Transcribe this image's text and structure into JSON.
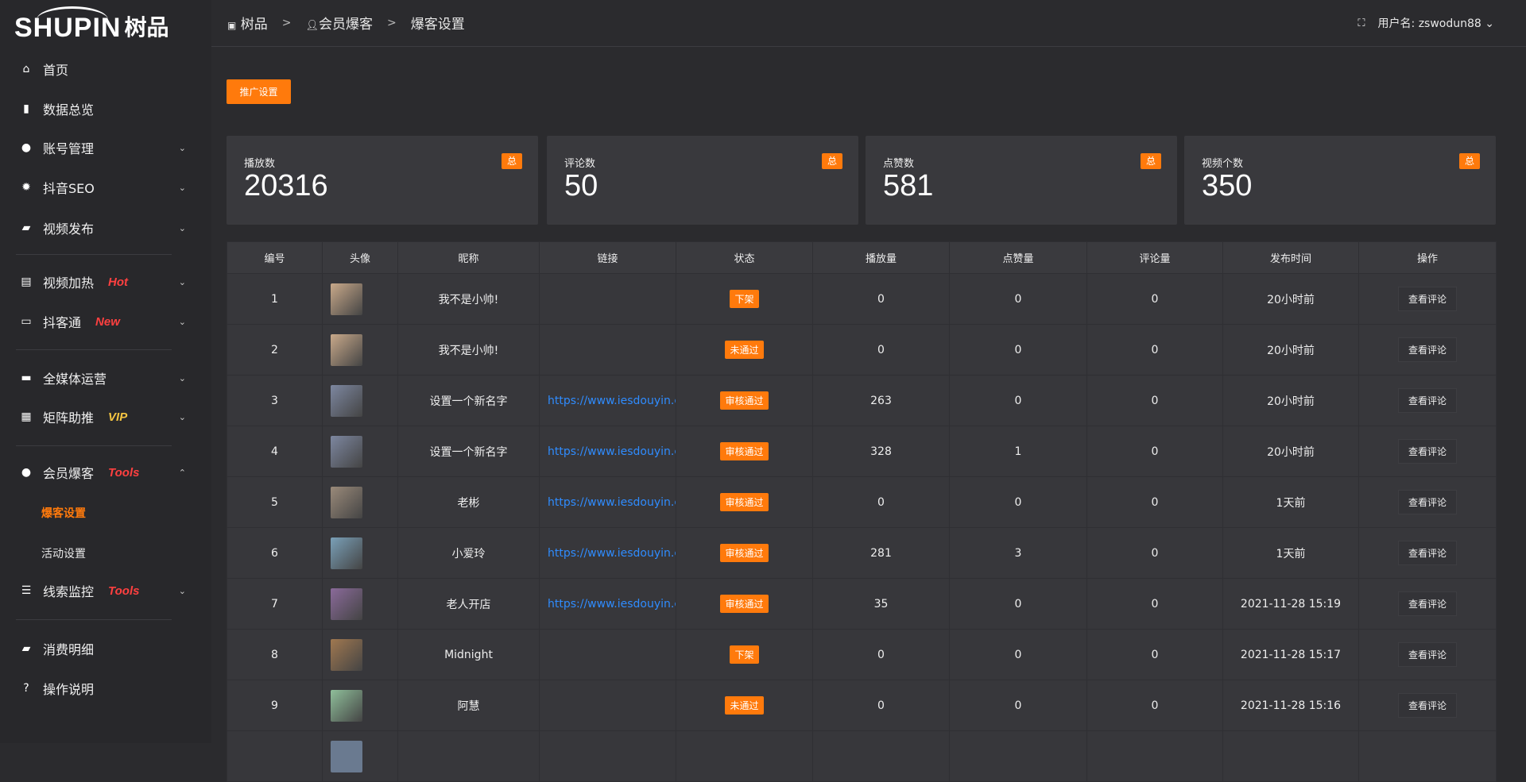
{
  "brand": {
    "logo_text": "SHUPIN 树品",
    "en": "SHUPIN",
    "cn": "树品"
  },
  "breadcrumb": [
    {
      "label": "树品"
    },
    {
      "label": "会员爆客"
    },
    {
      "label": "爆客设置"
    }
  ],
  "header": {
    "user_label": "用户名: zswodun88"
  },
  "sidebar": {
    "items": [
      {
        "label": "首页",
        "icon": "home-icon"
      },
      {
        "label": "数据总览",
        "icon": "bar-chart-icon"
      },
      {
        "label": "账号管理",
        "icon": "user-icon"
      },
      {
        "label": "抖音SEO",
        "icon": "gear-icon"
      },
      {
        "label": "视频发布",
        "icon": "camera-icon"
      },
      {
        "label": "视频加热",
        "icon": "sign-icon",
        "tag": "Hot"
      },
      {
        "label": "抖客通",
        "icon": "chat-icon",
        "tag": "New"
      },
      {
        "label": "全媒体运营",
        "icon": "monitor-icon"
      },
      {
        "label": "矩阵助推",
        "icon": "grid-icon",
        "tag": "VIP"
      },
      {
        "label": "会员爆客",
        "icon": "user-icon",
        "tag": "Tools"
      },
      {
        "label": "线索监控",
        "icon": "sliders-icon",
        "tag": "Tools"
      },
      {
        "label": "消费明细",
        "icon": "wallet-icon"
      },
      {
        "label": "操作说明",
        "icon": "help-icon"
      }
    ],
    "subitems": [
      {
        "label": "爆客设置",
        "active": true
      },
      {
        "label": "活动设置"
      }
    ]
  },
  "colors": {
    "accent": "#ff7a0c",
    "hot": "#ff4040",
    "vip": "#f5c542",
    "link": "#2f8cff"
  },
  "toolbar": {
    "promo_label": "推广设置"
  },
  "stats": [
    {
      "label": "播放数",
      "value": "20316",
      "badge": "总"
    },
    {
      "label": "评论数",
      "value": "50",
      "badge": "总"
    },
    {
      "label": "点赞数",
      "value": "581",
      "badge": "总"
    },
    {
      "label": "视频个数",
      "value": "350",
      "badge": "总"
    }
  ],
  "table": {
    "columns": [
      "编号",
      "头像",
      "昵称",
      "链接",
      "状态",
      "播放量",
      "点赞量",
      "评论量",
      "发布时间",
      "操作"
    ],
    "action_label": "查看评论",
    "rows": [
      {
        "id": "1",
        "nick": "我不是小帅!",
        "link": "",
        "status": "下架",
        "plays": "0",
        "likes": "0",
        "comments": "0",
        "time": "20小时前",
        "avatar": "#c9a98a"
      },
      {
        "id": "2",
        "nick": "我不是小帅!",
        "link": "",
        "status": "未通过",
        "plays": "0",
        "likes": "0",
        "comments": "0",
        "time": "20小时前",
        "avatar": "#c9a98a"
      },
      {
        "id": "3",
        "nick": "设置一个新名字",
        "link": "https://www.iesdouyin.c",
        "status": "审核通过",
        "plays": "263",
        "likes": "0",
        "comments": "0",
        "time": "20小时前",
        "avatar": "#7d87a0"
      },
      {
        "id": "4",
        "nick": "设置一个新名字",
        "link": "https://www.iesdouyin.c",
        "status": "审核通过",
        "plays": "328",
        "likes": "1",
        "comments": "0",
        "time": "20小时前",
        "avatar": "#7d87a0"
      },
      {
        "id": "5",
        "nick": "老彬",
        "link": "https://www.iesdouyin.c",
        "status": "审核通过",
        "plays": "0",
        "likes": "0",
        "comments": "0",
        "time": "1天前",
        "avatar": "#9a8a7a"
      },
      {
        "id": "6",
        "nick": "小爱玲",
        "link": "https://www.iesdouyin.c",
        "status": "审核通过",
        "plays": "281",
        "likes": "3",
        "comments": "0",
        "time": "1天前",
        "avatar": "#7aa0b8"
      },
      {
        "id": "7",
        "nick": "老人开店",
        "link": "https://www.iesdouyin.c",
        "status": "审核通过",
        "plays": "35",
        "likes": "0",
        "comments": "0",
        "time": "2021-11-28 15:19",
        "avatar": "#8a6a9a"
      },
      {
        "id": "8",
        "nick": "Midnight",
        "link": "",
        "status": "下架",
        "plays": "0",
        "likes": "0",
        "comments": "0",
        "time": "2021-11-28 15:17",
        "avatar": "#a07850"
      },
      {
        "id": "9",
        "nick": "阿慧",
        "link": "",
        "status": "未通过",
        "plays": "0",
        "likes": "0",
        "comments": "0",
        "time": "2021-11-28 15:16",
        "avatar": "#8fbf9a"
      }
    ]
  }
}
